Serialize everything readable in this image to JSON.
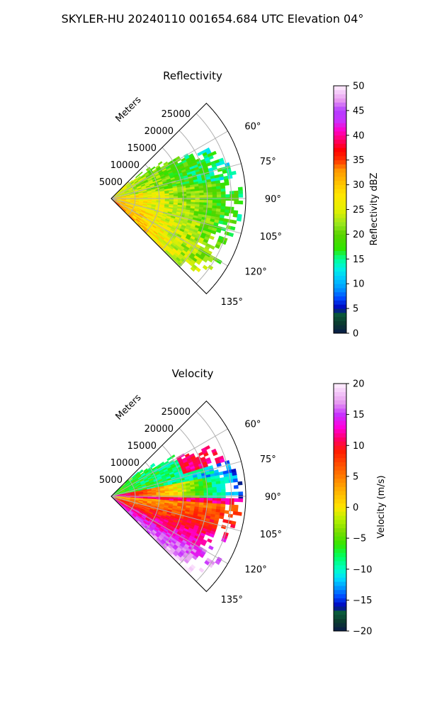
{
  "figure": {
    "title": "SKYLER-HU  20240110  001654.684 UTC Elevation 04°"
  },
  "chart_data": [
    {
      "type": "heatmap",
      "subtype": "polar-sector-ppi",
      "title": "Reflectivity",
      "radial_label": "Meters",
      "range_ticks": [
        "5000",
        "10000",
        "15000",
        "20000",
        "25000"
      ],
      "range_values": [
        5000,
        10000,
        15000,
        20000,
        25000
      ],
      "range_max": 28000,
      "azimuth_ticks": [
        "60°",
        "75°",
        "90°",
        "105°",
        "120°",
        "135°"
      ],
      "azimuth_values": [
        60,
        75,
        90,
        105,
        120,
        135
      ],
      "azimuth_range": [
        45,
        135
      ],
      "grid": true,
      "colorbar": {
        "label": "Reflectivity dBZ",
        "min": 0,
        "max": 50,
        "tick_labels": [
          "0",
          "5",
          "10",
          "15",
          "20",
          "25",
          "30",
          "35",
          "40",
          "45",
          "50"
        ],
        "tick_values": [
          0,
          5,
          10,
          15,
          20,
          25,
          30,
          35,
          40,
          45,
          50
        ]
      },
      "colormap": [
        {
          "v": 0,
          "c": "#0a1a4a"
        },
        {
          "v": 2,
          "c": "#0b3b2e"
        },
        {
          "v": 4,
          "c": "#0a5a3a"
        },
        {
          "v": 5,
          "c": "#0000b4"
        },
        {
          "v": 7,
          "c": "#0046ff"
        },
        {
          "v": 9,
          "c": "#0096ff"
        },
        {
          "v": 11,
          "c": "#00c8ff"
        },
        {
          "v": 13,
          "c": "#00f0e6"
        },
        {
          "v": 15,
          "c": "#00ff96"
        },
        {
          "v": 17,
          "c": "#2ee600"
        },
        {
          "v": 20,
          "c": "#5ad200"
        },
        {
          "v": 22,
          "c": "#96e61e"
        },
        {
          "v": 25,
          "c": "#e6f000"
        },
        {
          "v": 28,
          "c": "#ffe600"
        },
        {
          "v": 30,
          "c": "#ffc800"
        },
        {
          "v": 33,
          "c": "#ff9600"
        },
        {
          "v": 35,
          "c": "#ff3200"
        },
        {
          "v": 37,
          "c": "#ff0000"
        },
        {
          "v": 39,
          "c": "#ff0064"
        },
        {
          "v": 41,
          "c": "#ff00c8"
        },
        {
          "v": 43,
          "c": "#c832ff"
        },
        {
          "v": 45,
          "c": "#b43cff"
        },
        {
          "v": 47,
          "c": "#e696f0"
        },
        {
          "v": 50,
          "c": "#fff0ff"
        }
      ]
    },
    {
      "type": "heatmap",
      "subtype": "polar-sector-ppi",
      "title": "Velocity",
      "radial_label": "Meters",
      "range_ticks": [
        "5000",
        "10000",
        "15000",
        "20000",
        "25000"
      ],
      "range_values": [
        5000,
        10000,
        15000,
        20000,
        25000
      ],
      "range_max": 28000,
      "azimuth_ticks": [
        "60°",
        "75°",
        "90°",
        "105°",
        "120°",
        "135°"
      ],
      "azimuth_values": [
        60,
        75,
        90,
        105,
        120,
        135
      ],
      "azimuth_range": [
        45,
        135
      ],
      "grid": true,
      "colorbar": {
        "label": "Velocity (m/s)",
        "min": -20,
        "max": 20,
        "tick_labels": [
          "−20",
          "−15",
          "−10",
          "−5",
          "0",
          "5",
          "10",
          "15",
          "20"
        ],
        "tick_values": [
          -20,
          -15,
          -10,
          -5,
          0,
          5,
          10,
          15,
          20
        ]
      },
      "colormap": [
        {
          "v": -20,
          "c": "#0a1a4a"
        },
        {
          "v": -18.5,
          "c": "#0b3b2e"
        },
        {
          "v": -17,
          "c": "#0a5a3a"
        },
        {
          "v": -16,
          "c": "#0000b4"
        },
        {
          "v": -14.5,
          "c": "#0046ff"
        },
        {
          "v": -13,
          "c": "#0096ff"
        },
        {
          "v": -11.5,
          "c": "#00dcff"
        },
        {
          "v": -10,
          "c": "#00ffc8"
        },
        {
          "v": -8,
          "c": "#00ff64"
        },
        {
          "v": -6,
          "c": "#32e600"
        },
        {
          "v": -4,
          "c": "#78dc00"
        },
        {
          "v": -2,
          "c": "#b4f000"
        },
        {
          "v": 0,
          "c": "#ffe600"
        },
        {
          "v": 3,
          "c": "#ffaa00"
        },
        {
          "v": 6,
          "c": "#ff6400"
        },
        {
          "v": 9,
          "c": "#ff1e00"
        },
        {
          "v": 11,
          "c": "#ff0064"
        },
        {
          "v": 13,
          "c": "#ff00dc"
        },
        {
          "v": 15,
          "c": "#c832ff"
        },
        {
          "v": 17,
          "c": "#e69cf0"
        },
        {
          "v": 20,
          "c": "#fff0ff"
        }
      ]
    }
  ]
}
